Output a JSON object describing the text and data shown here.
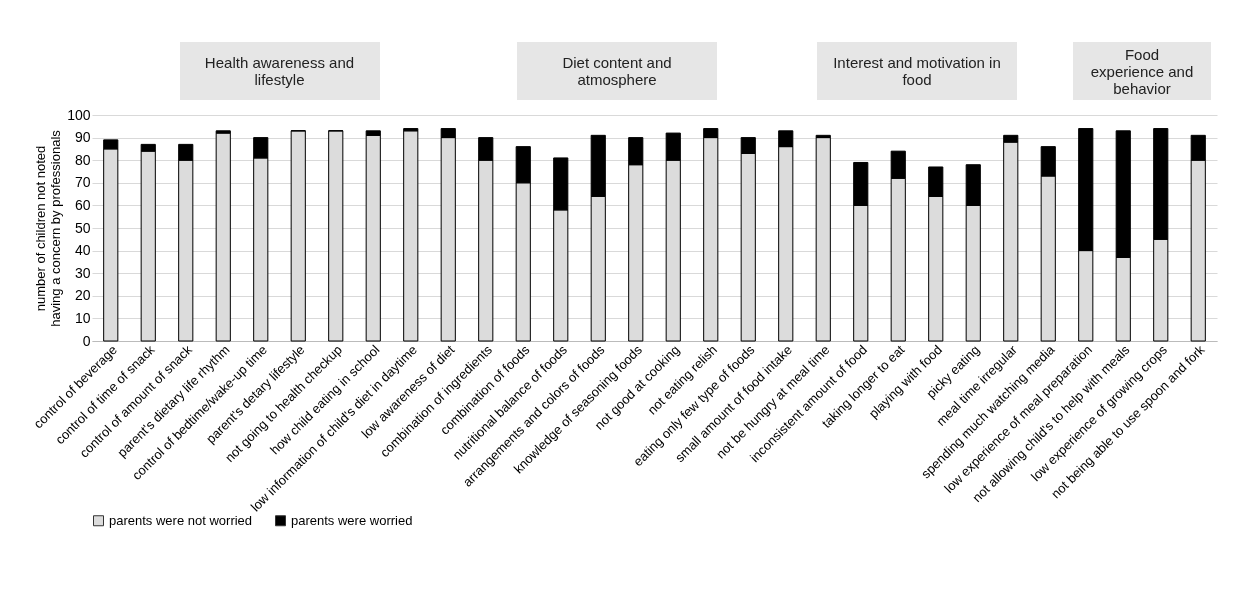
{
  "chart_data": {
    "type": "bar",
    "stacked": true,
    "ylabel": "number of children not noted having a concern by professionals",
    "categories": [
      "control of beverage",
      "control of time of snack",
      "control of amount of snack",
      "parent's dietary life rhythm",
      "control of bedtime/wake-up time",
      "parent's detary lifestyle",
      "not going to health checkup",
      "how child eating in school",
      "low information of child's diet in daytime",
      "low awareness of diet",
      "combination of ingredients",
      "combination of foods",
      "nutritional balance of foods",
      "arrangements and colors of foods",
      "knowledge of seasoning foods",
      "not good at cooking",
      "not eating relish",
      "eating only few type of foods",
      "small amount of food intake",
      "not be hungry at meal time",
      "inconsistent amount of food",
      "taking longer to eat",
      "playing with food",
      "picky eating",
      "meal time irregular",
      "spending much watching media",
      "low experience of meal preparation",
      "not allowing child's to help with meals",
      "low experience of growing crops",
      "not being able to use spoon and fork"
    ],
    "series": [
      {
        "name": "parents were not worried",
        "color": "#dcdcdc",
        "values": [
          85,
          84,
          80,
          92,
          81,
          93,
          93,
          91,
          93,
          90,
          80,
          70,
          58,
          64,
          78,
          80,
          90,
          83,
          86,
          90,
          60,
          72,
          64,
          60,
          88,
          73,
          40,
          37,
          45,
          80
        ]
      },
      {
        "name": "parents were worried",
        "color": "#000000",
        "values": [
          4,
          3,
          7,
          1,
          9,
          0,
          0,
          2,
          1,
          4,
          10,
          16,
          23,
          27,
          12,
          12,
          4,
          7,
          7,
          1,
          19,
          12,
          13,
          18,
          3,
          13,
          54,
          56,
          49,
          11
        ]
      }
    ],
    "ylim": [
      0,
      100
    ],
    "yticks": [
      0,
      10,
      20,
      30,
      40,
      50,
      60,
      70,
      80,
      90,
      100
    ],
    "grid": "y",
    "legend": "bottom",
    "annotations": [
      "Health awareness and lifestyle",
      "Diet content and atmosphere",
      "Interest and motivation in food",
      "Food experience and behavior"
    ]
  }
}
